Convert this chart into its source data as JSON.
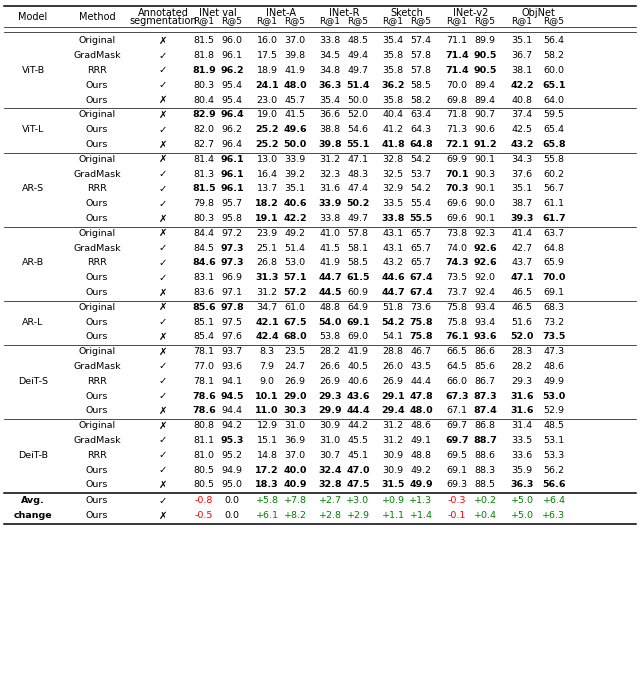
{
  "groups": [
    {
      "model": "ViT-B",
      "rows": [
        {
          "method": "Original",
          "seg": false,
          "vals": [
            "81.5",
            "96.0",
            "16.0",
            "37.0",
            "33.8",
            "48.5",
            "35.4",
            "57.4",
            "71.1",
            "89.9",
            "35.1",
            "56.4"
          ],
          "bold": []
        },
        {
          "method": "GradMask",
          "seg": true,
          "vals": [
            "81.8",
            "96.1",
            "17.5",
            "39.8",
            "34.5",
            "49.4",
            "35.8",
            "57.8",
            "71.4",
            "90.5",
            "36.7",
            "58.2"
          ],
          "bold": [
            8,
            9
          ]
        },
        {
          "method": "RRR",
          "seg": true,
          "vals": [
            "81.9",
            "96.2",
            "18.9",
            "41.9",
            "34.8",
            "49.7",
            "35.8",
            "57.8",
            "71.4",
            "90.5",
            "38.1",
            "60.0"
          ],
          "bold": [
            0,
            1,
            8,
            9
          ]
        },
        {
          "method": "Ours",
          "seg": true,
          "vals": [
            "80.3",
            "95.4",
            "24.1",
            "48.0",
            "36.3",
            "51.4",
            "36.2",
            "58.5",
            "70.0",
            "89.4",
            "42.2",
            "65.1"
          ],
          "bold": [
            2,
            3,
            4,
            5,
            6,
            10,
            11
          ]
        },
        {
          "method": "Ours",
          "seg": false,
          "vals": [
            "80.4",
            "95.4",
            "23.0",
            "45.7",
            "35.4",
            "50.0",
            "35.8",
            "58.2",
            "69.8",
            "89.4",
            "40.8",
            "64.0"
          ],
          "bold": []
        }
      ]
    },
    {
      "model": "ViT-L",
      "rows": [
        {
          "method": "Original",
          "seg": false,
          "vals": [
            "82.9",
            "96.4",
            "19.0",
            "41.5",
            "36.6",
            "52.0",
            "40.4",
            "63.4",
            "71.8",
            "90.7",
            "37.4",
            "59.5"
          ],
          "bold": [
            0,
            1
          ]
        },
        {
          "method": "Ours",
          "seg": true,
          "vals": [
            "82.0",
            "96.2",
            "25.2",
            "49.6",
            "38.8",
            "54.6",
            "41.2",
            "64.3",
            "71.3",
            "90.6",
            "42.5",
            "65.4"
          ],
          "bold": [
            2,
            3
          ]
        },
        {
          "method": "Ours",
          "seg": false,
          "vals": [
            "82.7",
            "96.4",
            "25.2",
            "50.0",
            "39.8",
            "55.1",
            "41.8",
            "64.8",
            "72.1",
            "91.2",
            "43.2",
            "65.8"
          ],
          "bold": [
            2,
            3,
            4,
            5,
            6,
            7,
            8,
            9,
            10,
            11
          ]
        }
      ]
    },
    {
      "model": "AR-S",
      "rows": [
        {
          "method": "Original",
          "seg": false,
          "vals": [
            "81.4",
            "96.1",
            "13.0",
            "33.9",
            "31.2",
            "47.1",
            "32.8",
            "54.2",
            "69.9",
            "90.1",
            "34.3",
            "55.8"
          ],
          "bold": [
            1
          ]
        },
        {
          "method": "GradMask",
          "seg": true,
          "vals": [
            "81.3",
            "96.1",
            "16.4",
            "39.2",
            "32.3",
            "48.3",
            "32.5",
            "53.7",
            "70.1",
            "90.3",
            "37.6",
            "60.2"
          ],
          "bold": [
            1,
            8
          ]
        },
        {
          "method": "RRR",
          "seg": true,
          "vals": [
            "81.5",
            "96.1",
            "13.7",
            "35.1",
            "31.6",
            "47.4",
            "32.9",
            "54.2",
            "70.3",
            "90.1",
            "35.1",
            "56.7"
          ],
          "bold": [
            0,
            1,
            8
          ]
        },
        {
          "method": "Ours",
          "seg": true,
          "vals": [
            "79.8",
            "95.7",
            "18.2",
            "40.6",
            "33.9",
            "50.2",
            "33.5",
            "55.4",
            "69.6",
            "90.0",
            "38.7",
            "61.1"
          ],
          "bold": [
            2,
            3,
            4,
            5
          ]
        },
        {
          "method": "Ours",
          "seg": false,
          "vals": [
            "80.3",
            "95.8",
            "19.1",
            "42.2",
            "33.8",
            "49.7",
            "33.8",
            "55.5",
            "69.6",
            "90.1",
            "39.3",
            "61.7"
          ],
          "bold": [
            2,
            3,
            6,
            7,
            10,
            11
          ]
        }
      ]
    },
    {
      "model": "AR-B",
      "rows": [
        {
          "method": "Original",
          "seg": false,
          "vals": [
            "84.4",
            "97.2",
            "23.9",
            "49.2",
            "41.0",
            "57.8",
            "43.1",
            "65.7",
            "73.8",
            "92.3",
            "41.4",
            "63.7"
          ],
          "bold": []
        },
        {
          "method": "GradMask",
          "seg": true,
          "vals": [
            "84.5",
            "97.3",
            "25.1",
            "51.4",
            "41.5",
            "58.1",
            "43.1",
            "65.7",
            "74.0",
            "92.6",
            "42.7",
            "64.8"
          ],
          "bold": [
            1,
            9
          ]
        },
        {
          "method": "RRR",
          "seg": true,
          "vals": [
            "84.6",
            "97.3",
            "26.8",
            "53.0",
            "41.9",
            "58.5",
            "43.2",
            "65.7",
            "74.3",
            "92.6",
            "43.7",
            "65.9"
          ],
          "bold": [
            0,
            1,
            8,
            9
          ]
        },
        {
          "method": "Ours",
          "seg": true,
          "vals": [
            "83.1",
            "96.9",
            "31.3",
            "57.1",
            "44.7",
            "61.5",
            "44.6",
            "67.4",
            "73.5",
            "92.0",
            "47.1",
            "70.0"
          ],
          "bold": [
            2,
            3,
            4,
            5,
            6,
            7,
            10,
            11
          ]
        },
        {
          "method": "Ours",
          "seg": false,
          "vals": [
            "83.6",
            "97.1",
            "31.2",
            "57.2",
            "44.5",
            "60.9",
            "44.7",
            "67.4",
            "73.7",
            "92.4",
            "46.5",
            "69.1"
          ],
          "bold": [
            3,
            4,
            6,
            7
          ]
        }
      ]
    },
    {
      "model": "AR-L",
      "rows": [
        {
          "method": "Original",
          "seg": false,
          "vals": [
            "85.6",
            "97.8",
            "34.7",
            "61.0",
            "48.8",
            "64.9",
            "51.8",
            "73.6",
            "75.8",
            "93.4",
            "46.5",
            "68.3"
          ],
          "bold": [
            0,
            1
          ]
        },
        {
          "method": "Ours",
          "seg": true,
          "vals": [
            "85.1",
            "97.5",
            "42.1",
            "67.5",
            "54.0",
            "69.1",
            "54.2",
            "75.8",
            "75.8",
            "93.4",
            "51.6",
            "73.2"
          ],
          "bold": [
            2,
            3,
            4,
            5,
            6,
            7
          ]
        },
        {
          "method": "Ours",
          "seg": false,
          "vals": [
            "85.4",
            "97.6",
            "42.4",
            "68.0",
            "53.8",
            "69.0",
            "54.1",
            "75.8",
            "76.1",
            "93.6",
            "52.0",
            "73.5"
          ],
          "bold": [
            2,
            3,
            7,
            8,
            9,
            10,
            11
          ]
        }
      ]
    },
    {
      "model": "DeiT-S",
      "rows": [
        {
          "method": "Original",
          "seg": false,
          "vals": [
            "78.1",
            "93.7",
            "8.3",
            "23.5",
            "28.2",
            "41.9",
            "28.8",
            "46.7",
            "66.5",
            "86.6",
            "28.3",
            "47.3"
          ],
          "bold": []
        },
        {
          "method": "GradMask",
          "seg": true,
          "vals": [
            "77.0",
            "93.6",
            "7.9",
            "24.7",
            "26.6",
            "40.5",
            "26.0",
            "43.5",
            "64.5",
            "85.6",
            "28.2",
            "48.6"
          ],
          "bold": []
        },
        {
          "method": "RRR",
          "seg": true,
          "vals": [
            "78.1",
            "94.1",
            "9.0",
            "26.9",
            "26.9",
            "40.6",
            "26.9",
            "44.4",
            "66.0",
            "86.7",
            "29.3",
            "49.9"
          ],
          "bold": []
        },
        {
          "method": "Ours",
          "seg": true,
          "vals": [
            "78.6",
            "94.5",
            "10.1",
            "29.0",
            "29.3",
            "43.6",
            "29.1",
            "47.8",
            "67.3",
            "87.3",
            "31.6",
            "53.0"
          ],
          "bold": [
            0,
            1,
            2,
            3,
            4,
            5,
            6,
            7,
            8,
            9,
            10,
            11
          ]
        },
        {
          "method": "Ours",
          "seg": false,
          "vals": [
            "78.6",
            "94.4",
            "11.0",
            "30.3",
            "29.9",
            "44.4",
            "29.4",
            "48.0",
            "67.1",
            "87.4",
            "31.6",
            "52.9"
          ],
          "bold": [
            0,
            2,
            3,
            4,
            5,
            6,
            7,
            9,
            10
          ]
        }
      ]
    },
    {
      "model": "DeiT-B",
      "rows": [
        {
          "method": "Original",
          "seg": false,
          "vals": [
            "80.8",
            "94.2",
            "12.9",
            "31.0",
            "30.9",
            "44.2",
            "31.2",
            "48.6",
            "69.7",
            "86.8",
            "31.4",
            "48.5"
          ],
          "bold": []
        },
        {
          "method": "GradMask",
          "seg": true,
          "vals": [
            "81.1",
            "95.3",
            "15.1",
            "36.9",
            "31.0",
            "45.5",
            "31.2",
            "49.1",
            "69.7",
            "88.7",
            "33.5",
            "53.1"
          ],
          "bold": [
            1,
            8,
            9
          ]
        },
        {
          "method": "RRR",
          "seg": true,
          "vals": [
            "81.0",
            "95.2",
            "14.8",
            "37.0",
            "30.7",
            "45.1",
            "30.9",
            "48.8",
            "69.5",
            "88.6",
            "33.6",
            "53.3"
          ],
          "bold": []
        },
        {
          "method": "Ours",
          "seg": true,
          "vals": [
            "80.5",
            "94.9",
            "17.2",
            "40.0",
            "32.4",
            "47.0",
            "30.9",
            "49.2",
            "69.1",
            "88.3",
            "35.9",
            "56.2"
          ],
          "bold": [
            2,
            3,
            4,
            5
          ]
        },
        {
          "method": "Ours",
          "seg": false,
          "vals": [
            "80.5",
            "95.0",
            "18.3",
            "40.9",
            "32.8",
            "47.5",
            "31.5",
            "49.9",
            "69.3",
            "88.5",
            "36.3",
            "56.6"
          ],
          "bold": [
            2,
            3,
            4,
            5,
            6,
            7,
            10,
            11
          ]
        }
      ]
    }
  ],
  "avg_rows": [
    {
      "method": "Ours",
      "seg": true,
      "vals": [
        "-0.8",
        "0.0",
        "+5.8",
        "+7.8",
        "+2.7",
        "+3.0",
        "+0.9",
        "+1.3",
        "-0.3",
        "+0.2",
        "+5.0",
        "+6.4"
      ]
    },
    {
      "method": "Ours",
      "seg": false,
      "vals": [
        "-0.5",
        "0.0",
        "+6.1",
        "+8.2",
        "+2.8",
        "+2.9",
        "+1.1",
        "+1.4",
        "-0.1",
        "+0.4",
        "+5.0",
        "+6.3"
      ]
    }
  ],
  "pos_color": "#008000",
  "neg_color": "#ff0000",
  "normal_color": "#000000",
  "line_color": "#000000",
  "bg_color": "#ffffff"
}
